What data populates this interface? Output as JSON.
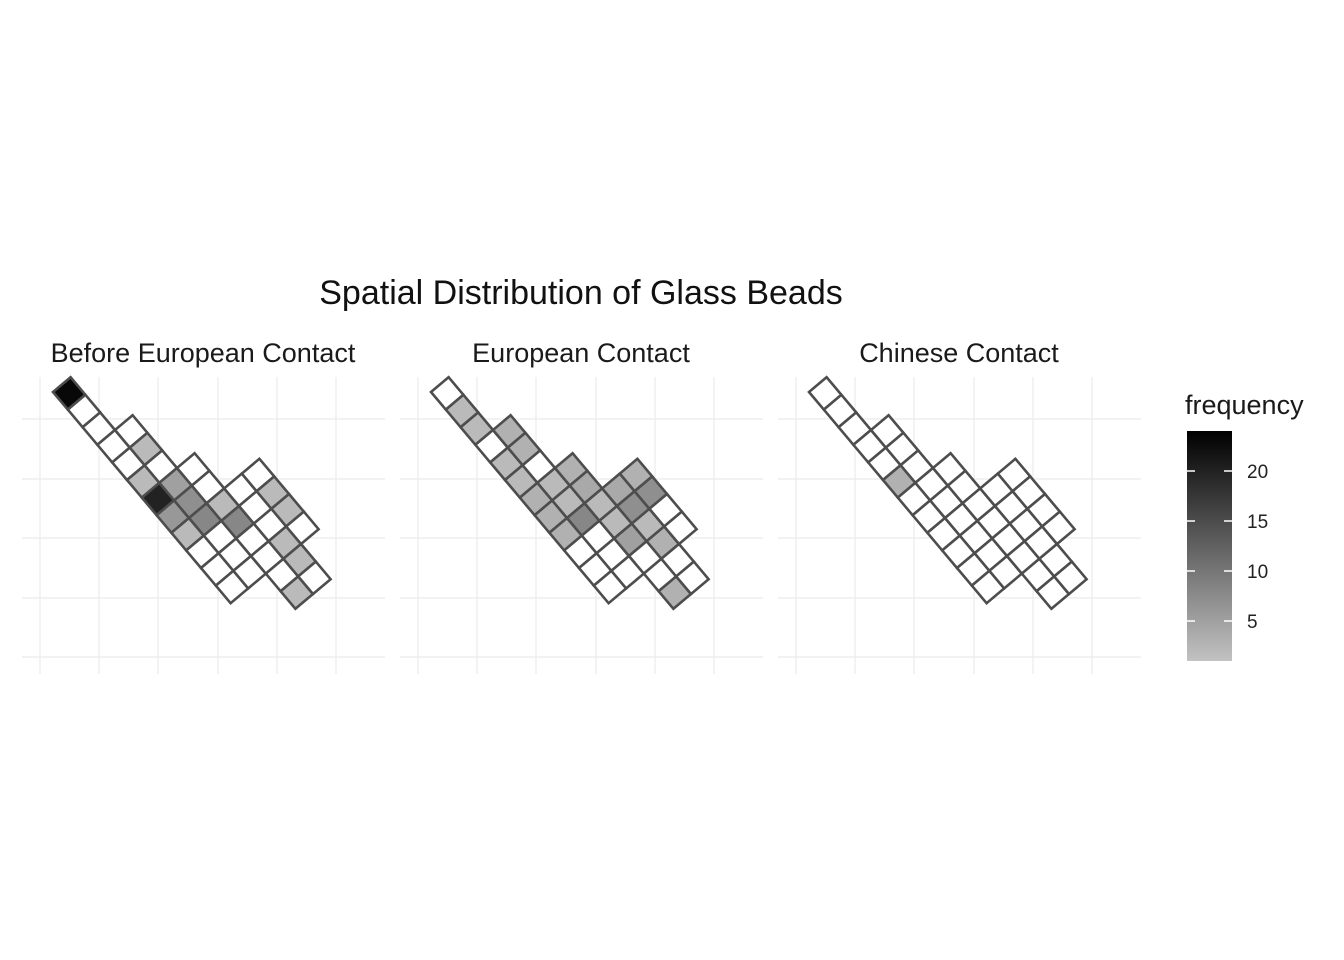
{
  "chart_data": {
    "type": "heatmap",
    "title": "Spatial Distribution of Glass Beads",
    "legend": {
      "title": "frequency",
      "range": [
        1,
        24
      ],
      "ticks": [
        5,
        10,
        15,
        20
      ],
      "color_low": "#c2c2c2",
      "color_high": "#000000",
      "placement": "right"
    },
    "grid": true,
    "cell_outline_color": "#4d4d4d",
    "empty_fill": "#ffffff",
    "panels": [
      {
        "name": "Before European Contact",
        "cells": [
          [
            0,
            0,
            23
          ],
          [
            1,
            0,
            0
          ],
          [
            2,
            0,
            0
          ],
          [
            3,
            0,
            0
          ],
          [
            4,
            0,
            0
          ],
          [
            5,
            0,
            2
          ],
          [
            6,
            0,
            20
          ],
          [
            7,
            0,
            6
          ],
          [
            8,
            0,
            2
          ],
          [
            9,
            0,
            0
          ],
          [
            10,
            0,
            0
          ],
          [
            11,
            0,
            0
          ],
          [
            3,
            1,
            0
          ],
          [
            4,
            1,
            2
          ],
          [
            5,
            1,
            0
          ],
          [
            6,
            1,
            5
          ],
          [
            7,
            1,
            7
          ],
          [
            8,
            1,
            8
          ],
          [
            9,
            1,
            0
          ],
          [
            10,
            1,
            0
          ],
          [
            11,
            1,
            0
          ],
          [
            6,
            2,
            0
          ],
          [
            7,
            2,
            0
          ],
          [
            8,
            2,
            2
          ],
          [
            9,
            2,
            8
          ],
          [
            10,
            2,
            0
          ],
          [
            11,
            2,
            0
          ],
          [
            12,
            2,
            0
          ],
          [
            13,
            2,
            2
          ],
          [
            8,
            3,
            0
          ],
          [
            9,
            3,
            0
          ],
          [
            10,
            3,
            0
          ],
          [
            11,
            3,
            2
          ],
          [
            12,
            3,
            2
          ],
          [
            13,
            3,
            0
          ],
          [
            8,
            4,
            0
          ],
          [
            9,
            4,
            2
          ],
          [
            10,
            4,
            2
          ],
          [
            11,
            4,
            0
          ]
        ]
      },
      {
        "name": "European Contact",
        "cells": [
          [
            0,
            0,
            0
          ],
          [
            1,
            0,
            2
          ],
          [
            2,
            0,
            2
          ],
          [
            3,
            0,
            0
          ],
          [
            4,
            0,
            2
          ],
          [
            5,
            0,
            2
          ],
          [
            6,
            0,
            3
          ],
          [
            7,
            0,
            3
          ],
          [
            8,
            0,
            3
          ],
          [
            9,
            0,
            0
          ],
          [
            10,
            0,
            0
          ],
          [
            11,
            0,
            0
          ],
          [
            3,
            1,
            3
          ],
          [
            4,
            1,
            3
          ],
          [
            5,
            1,
            0
          ],
          [
            6,
            1,
            2
          ],
          [
            7,
            1,
            2
          ],
          [
            8,
            1,
            8
          ],
          [
            9,
            1,
            0
          ],
          [
            10,
            1,
            0
          ],
          [
            11,
            1,
            0
          ],
          [
            6,
            2,
            3
          ],
          [
            7,
            2,
            4
          ],
          [
            8,
            2,
            2
          ],
          [
            9,
            2,
            2
          ],
          [
            10,
            2,
            5
          ],
          [
            11,
            2,
            0
          ],
          [
            12,
            2,
            0
          ],
          [
            13,
            2,
            3
          ],
          [
            8,
            3,
            4
          ],
          [
            9,
            3,
            7
          ],
          [
            10,
            3,
            2
          ],
          [
            11,
            3,
            3
          ],
          [
            12,
            3,
            0
          ],
          [
            13,
            3,
            0
          ],
          [
            8,
            4,
            3
          ],
          [
            9,
            4,
            7
          ],
          [
            10,
            4,
            0
          ],
          [
            11,
            4,
            0
          ]
        ]
      },
      {
        "name": "Chinese Contact",
        "cells": [
          [
            0,
            0,
            0
          ],
          [
            1,
            0,
            0
          ],
          [
            2,
            0,
            0
          ],
          [
            3,
            0,
            0
          ],
          [
            4,
            0,
            0
          ],
          [
            5,
            0,
            3
          ],
          [
            6,
            0,
            0
          ],
          [
            7,
            0,
            0
          ],
          [
            8,
            0,
            0
          ],
          [
            9,
            0,
            0
          ],
          [
            10,
            0,
            0
          ],
          [
            11,
            0,
            0
          ],
          [
            3,
            1,
            0
          ],
          [
            4,
            1,
            0
          ],
          [
            5,
            1,
            0
          ],
          [
            6,
            1,
            0
          ],
          [
            7,
            1,
            0
          ],
          [
            8,
            1,
            0
          ],
          [
            9,
            1,
            0
          ],
          [
            10,
            1,
            0
          ],
          [
            11,
            1,
            0
          ],
          [
            6,
            2,
            0
          ],
          [
            7,
            2,
            0
          ],
          [
            8,
            2,
            0
          ],
          [
            9,
            2,
            0
          ],
          [
            10,
            2,
            0
          ],
          [
            11,
            2,
            0
          ],
          [
            12,
            2,
            0
          ],
          [
            13,
            2,
            0
          ],
          [
            8,
            3,
            0
          ],
          [
            9,
            3,
            0
          ],
          [
            10,
            3,
            0
          ],
          [
            11,
            3,
            0
          ],
          [
            12,
            3,
            0
          ],
          [
            13,
            3,
            0
          ],
          [
            8,
            4,
            0
          ],
          [
            9,
            4,
            0
          ],
          [
            10,
            4,
            0
          ],
          [
            11,
            4,
            0
          ]
        ]
      }
    ]
  }
}
